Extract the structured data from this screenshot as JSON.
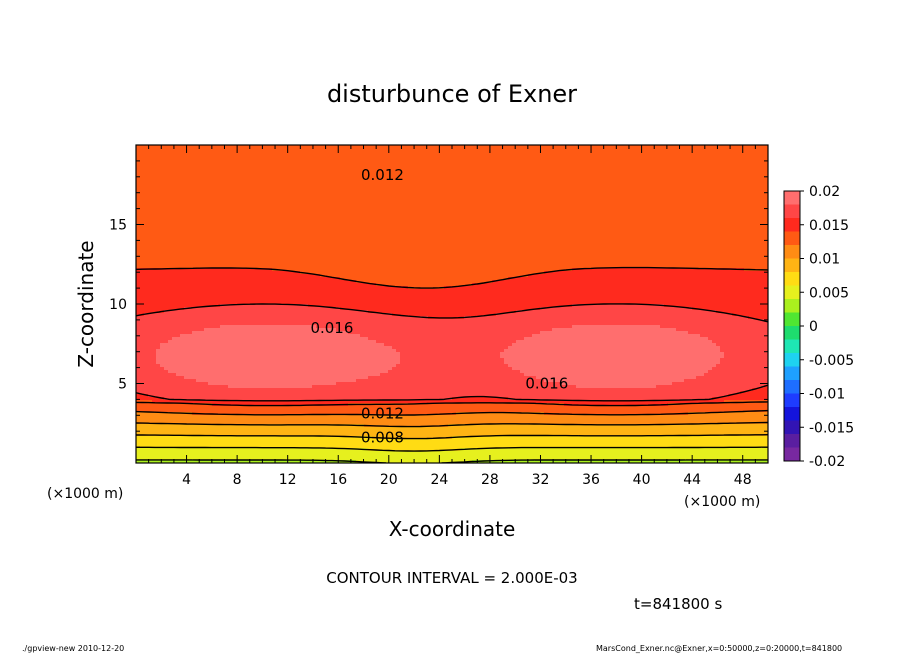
{
  "chart_data": {
    "type": "heatmap",
    "title": "disturbunce of Exner",
    "xlabel": "X-coordinate",
    "ylabel": "Z-coordinate",
    "x_unit_left": "(×1000 m)",
    "x_unit_right": "(×1000 m)",
    "xlim": [
      0,
      50
    ],
    "ylim": [
      0,
      20
    ],
    "x_ticks": [
      4,
      8,
      12,
      16,
      20,
      24,
      28,
      32,
      36,
      40,
      44,
      48
    ],
    "y_ticks": [
      5,
      10,
      15
    ],
    "contour_interval_text": "CONTOUR INTERVAL = 2.000E-03",
    "contour_labels": [
      {
        "text": "0.012",
        "x": 19.5,
        "y": 18.1
      },
      {
        "text": "0.016",
        "x": 15.5,
        "y": 8.5
      },
      {
        "text": "0.016",
        "x": 32.5,
        "y": 5.0
      },
      {
        "text": "0.012",
        "x": 19.5,
        "y": 3.1
      },
      {
        "text": "0.008",
        "x": 19.5,
        "y": 1.6
      }
    ],
    "colorbar": {
      "labels": [
        "0.02",
        "0.015",
        "0.01",
        "0.005",
        "0",
        "-0.005",
        "-0.01",
        "-0.015",
        "-0.02"
      ],
      "bins": [
        {
          "lo": 0.018,
          "color": "#ff6e6e"
        },
        {
          "lo": 0.016,
          "color": "#ff4646"
        },
        {
          "lo": 0.014,
          "color": "#ff2a1e"
        },
        {
          "lo": 0.012,
          "color": "#ff5a14"
        },
        {
          "lo": 0.01,
          "color": "#ff8c14"
        },
        {
          "lo": 0.008,
          "color": "#ffb414"
        },
        {
          "lo": 0.006,
          "color": "#ffdc14"
        },
        {
          "lo": 0.004,
          "color": "#e6f01e"
        },
        {
          "lo": 0.002,
          "color": "#aaf01e"
        },
        {
          "lo": 0.0,
          "color": "#50e632"
        },
        {
          "lo": -0.002,
          "color": "#1edc6e"
        },
        {
          "lo": -0.004,
          "color": "#1ee6b4"
        },
        {
          "lo": -0.006,
          "color": "#1ed2f0"
        },
        {
          "lo": -0.008,
          "color": "#1ea0ff"
        },
        {
          "lo": -0.01,
          "color": "#1e6eff"
        },
        {
          "lo": -0.012,
          "color": "#1e3cff"
        },
        {
          "lo": -0.014,
          "color": "#1414dc"
        },
        {
          "lo": -0.016,
          "color": "#3214b4"
        },
        {
          "lo": -0.018,
          "color": "#5a1ea0"
        },
        {
          "lo": -0.02,
          "color": "#7828a0"
        }
      ]
    },
    "field_description": "horizontally-varying profile: value decreases from ~0.0135 at top to ~0.004 at bottom, maximum ~0.019 in two lobes near z=6.5 centered x≈10 and x≈38",
    "time_label": "t=841800 s"
  },
  "footer": {
    "left": "./gpview-new   2010-12-20",
    "right": "MarsCond_Exner.nc@Exner,x=0:50000,z=0:20000,t=841800"
  }
}
